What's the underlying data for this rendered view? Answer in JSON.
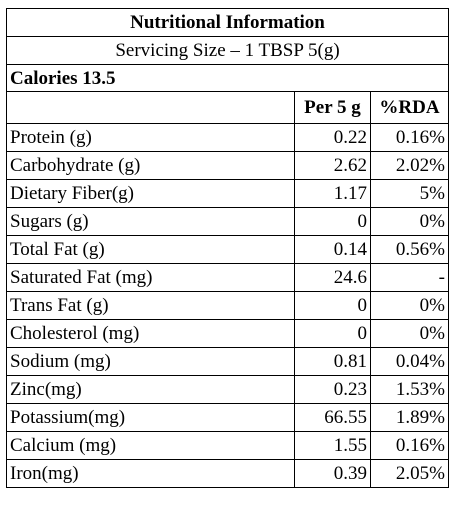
{
  "table": {
    "title": "Nutritional Information",
    "serving": "Servicing Size – 1 TBSP 5(g)",
    "calories": "Calories 13.5",
    "columns": {
      "per": "Per 5 g",
      "rda": "%RDA"
    },
    "rows": [
      {
        "name": "Protein (g)",
        "per": "0.22",
        "rda": "0.16%"
      },
      {
        "name": "Carbohydrate (g)",
        "per": "2.62",
        "rda": "2.02%"
      },
      {
        "name": "Dietary Fiber(g)",
        "per": "1.17",
        "rda": "5%"
      },
      {
        "name": "Sugars (g)",
        "per": "0",
        "rda": "0%"
      },
      {
        "name": "Total Fat (g)",
        "per": "0.14",
        "rda": "0.56%"
      },
      {
        "name": "Saturated Fat (mg)",
        "per": "24.6",
        "rda": "-"
      },
      {
        "name": "Trans Fat (g)",
        "per": "0",
        "rda": "0%"
      },
      {
        "name": "Cholesterol (mg)",
        "per": "0",
        "rda": "0%"
      },
      {
        "name": "Sodium (mg)",
        "per": "0.81",
        "rda": "0.04%"
      },
      {
        "name": "Zinc(mg)",
        "per": "0.23",
        "rda": "1.53%"
      },
      {
        "name": "Potassium(mg)",
        "per": "66.55",
        "rda": "1.89%"
      },
      {
        "name": "Calcium (mg)",
        "per": "1.55",
        "rda": "0.16%"
      },
      {
        "name": "Iron(mg)",
        "per": "0.39",
        "rda": "2.05%"
      }
    ]
  }
}
